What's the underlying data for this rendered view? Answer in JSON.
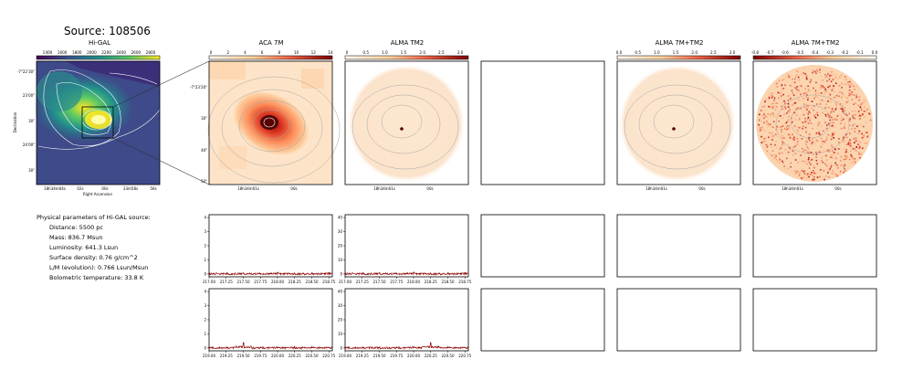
{
  "source_title": "Source: 108506",
  "panels": {
    "higal": {
      "title": "Hi-GAL",
      "colorbar_ticks": [
        "1400",
        "1600",
        "1800",
        "2000",
        "2200",
        "2400",
        "2600",
        "2800"
      ],
      "ytick_labels": [
        "-7°22'30\"",
        "23'00\"",
        "30\"",
        "24'00\"",
        "30\""
      ],
      "xtick_labels": [
        "18h34m04s",
        "02s",
        "00s",
        "33m58s",
        "56s"
      ],
      "xlabel": "Right Ascension",
      "ylabel": "Declination"
    },
    "aca": {
      "title": "ACA 7M",
      "colorbar_ticks": [
        "0",
        "2",
        "4",
        "6",
        "8",
        "10",
        "12",
        "14"
      ],
      "ytick_labels": [
        "-7°23'20\"",
        "30\"",
        "40\"",
        "50\""
      ],
      "xtick_labels": [
        "18h34m01s",
        "00s"
      ]
    },
    "tm2": {
      "title": "ALMA TM2",
      "colorbar_ticks": [
        "0",
        "0.5",
        "1.0",
        "1.5",
        "2.0",
        "2.5",
        "3.0"
      ],
      "xtick_labels": [
        "18h34m01s",
        "00s"
      ]
    },
    "combo": {
      "title": "ALMA 7M+TM2",
      "colorbar_ticks": [
        "0.0",
        "0.5",
        "1.0",
        "1.5",
        "2.0",
        "2.5",
        "3.0"
      ],
      "xtick_labels": [
        "18h34m01s",
        "00s"
      ]
    },
    "combo_neg": {
      "title": "ALMA 7M+TM2",
      "colorbar_ticks": [
        "-0.8",
        "-0.7",
        "-0.6",
        "-0.5",
        "-0.4",
        "-0.3",
        "-0.2",
        "-0.1",
        "0.0"
      ],
      "xtick_labels": [
        "18h34m01s",
        "00s"
      ]
    }
  },
  "params": {
    "header": "Physical parameters of Hi-GAL source:",
    "lines": [
      "Distance: 5500 pc",
      "Mass: 836.7 Msun",
      "Luminosity: 641.3 Lsun",
      "Surface density: 0.76 g/cm^2",
      "L/M (evolution): 0.766 Lsun/Msun",
      "Bolometric temperature: 33.8 K"
    ]
  },
  "colors": {
    "spectrum": "#8b0000",
    "contour": "#a8a8a8",
    "higal_contour": "#ffffff",
    "frame": "#000000"
  },
  "chart_data": [
    {
      "type": "line",
      "panel": "spectrum-aca-low",
      "x": [
        217.0,
        217.25,
        217.5,
        217.75,
        218.0,
        218.25,
        218.5,
        218.75
      ],
      "xticks": [
        "217.00",
        "217.25",
        "217.50",
        "217.75",
        "218.00",
        "218.25",
        "218.50",
        "218.75"
      ],
      "xlim": [
        217.0,
        218.8
      ],
      "yticks": [
        "0",
        "1",
        "2",
        "3",
        "4"
      ],
      "ylim": [
        -0.2,
        4.2
      ],
      "values": [
        0.05,
        0.03,
        0.06,
        0.04,
        0.08,
        0.05,
        0.04,
        0.06
      ]
    },
    {
      "type": "line",
      "panel": "spectrum-tm2-low",
      "x": [
        217.0,
        217.25,
        217.5,
        217.75,
        218.0,
        218.25,
        218.5,
        218.75
      ],
      "xticks": [
        "217.00",
        "217.25",
        "217.50",
        "217.75",
        "218.00",
        "218.25",
        "218.50",
        "218.75"
      ],
      "xlim": [
        217.0,
        218.8
      ],
      "yticks": [
        "0",
        "10",
        "20",
        "30",
        "40"
      ],
      "ylim": [
        -2,
        42
      ],
      "values": [
        0.6,
        0.4,
        0.7,
        0.5,
        0.9,
        0.5,
        0.4,
        0.6
      ]
    },
    {
      "type": "line",
      "panel": "spectrum-aca-high",
      "x": [
        219.0,
        219.25,
        219.5,
        219.75,
        220.0,
        220.25,
        220.5,
        220.75
      ],
      "xticks": [
        "219.00",
        "219.25",
        "219.50",
        "219.75",
        "220.00",
        "220.25",
        "220.50",
        "220.75"
      ],
      "xlim": [
        219.0,
        220.8
      ],
      "yticks": [
        "0",
        "1",
        "2",
        "3",
        "4"
      ],
      "ylim": [
        -0.2,
        4.2
      ],
      "values": [
        0.04,
        0.06,
        0.35,
        0.05,
        0.04,
        0.06,
        0.05,
        0.04
      ]
    },
    {
      "type": "line",
      "panel": "spectrum-tm2-high",
      "x": [
        219.0,
        219.25,
        219.5,
        219.75,
        220.0,
        220.25,
        220.5,
        220.75
      ],
      "xticks": [
        "219.00",
        "219.25",
        "219.50",
        "219.75",
        "220.00",
        "220.25",
        "220.50",
        "220.75"
      ],
      "xlim": [
        219.0,
        220.8
      ],
      "yticks": [
        "0",
        "10",
        "20",
        "30",
        "40"
      ],
      "ylim": [
        -2,
        42
      ],
      "values": [
        0.5,
        0.6,
        0.4,
        0.5,
        0.6,
        3.5,
        0.5,
        0.4
      ]
    }
  ]
}
